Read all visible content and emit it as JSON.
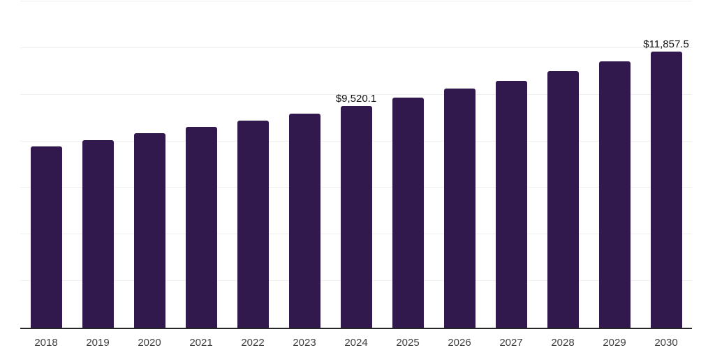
{
  "chart_data": {
    "type": "bar",
    "categories": [
      "2018",
      "2019",
      "2020",
      "2021",
      "2022",
      "2023",
      "2024",
      "2025",
      "2026",
      "2027",
      "2028",
      "2029",
      "2030"
    ],
    "values": [
      7790,
      8050,
      8340,
      8620,
      8880,
      9190,
      9520.1,
      9880,
      10250,
      10590,
      11010,
      11440,
      11857.5
    ],
    "point_labels": [
      "",
      "",
      "",
      "",
      "",
      "",
      "$9,520.1",
      "",
      "",
      "",
      "",
      "",
      "$11,857.5"
    ],
    "title": "",
    "xlabel": "",
    "ylabel": "",
    "ylim": [
      0,
      14000
    ],
    "grid_interval": 2000,
    "grid": "horizontal",
    "legend": "none",
    "colors": {
      "bar": "#32194d",
      "grid": "#efefef",
      "axis": "#262626",
      "tick_label": "#3e3e3e",
      "data_label": "#121212"
    }
  }
}
